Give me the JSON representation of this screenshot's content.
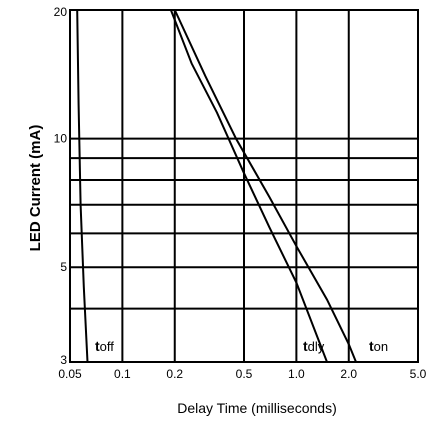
{
  "chart_data": {
    "type": "line",
    "title": "",
    "xlabel": "Delay Time  (milliseconds)",
    "ylabel": "LED Current (mA)",
    "x_scale": "log",
    "y_scale": "log",
    "xlim": [
      0.05,
      5.0
    ],
    "ylim": [
      3,
      20
    ],
    "x_ticks": [
      0.05,
      0.1,
      0.2,
      0.5,
      1.0,
      2.0,
      5.0
    ],
    "x_tick_labels": [
      "0.05",
      "0.1",
      "0.2",
      "0.5",
      "1.0",
      "2.0",
      "5.0"
    ],
    "y_tick_labels": [
      {
        "value": 3,
        "label": "3"
      },
      {
        "value": 5,
        "label": "5"
      },
      {
        "value": 10,
        "label": "10"
      },
      {
        "value": 20,
        "label": "20"
      }
    ],
    "y_gridlines": [
      4,
      5,
      6,
      7,
      8,
      9,
      10
    ],
    "x_gridlines": [
      0.1,
      0.2,
      0.5,
      1.0,
      2.0
    ],
    "grid": true,
    "series": [
      {
        "label_main": "t",
        "label_sub": "off",
        "points": [
          [
            0.055,
            20
          ],
          [
            0.056,
            12
          ],
          [
            0.0575,
            7
          ],
          [
            0.06,
            4.5
          ],
          [
            0.063,
            3
          ]
        ]
      },
      {
        "label_main": "t",
        "label_sub": "dly",
        "points": [
          [
            0.19,
            20
          ],
          [
            0.25,
            15
          ],
          [
            0.35,
            11.5
          ],
          [
            0.5,
            8.3
          ],
          [
            0.7,
            6.2
          ],
          [
            1.0,
            4.6
          ],
          [
            1.5,
            3
          ]
        ]
      },
      {
        "label_main": "t",
        "label_sub": "on",
        "points": [
          [
            0.2,
            20
          ],
          [
            0.3,
            14
          ],
          [
            0.45,
            10
          ],
          [
            0.7,
            7.3
          ],
          [
            1.0,
            5.6
          ],
          [
            1.5,
            4.2
          ],
          [
            2.0,
            3.3
          ],
          [
            2.2,
            3
          ]
        ]
      }
    ]
  }
}
